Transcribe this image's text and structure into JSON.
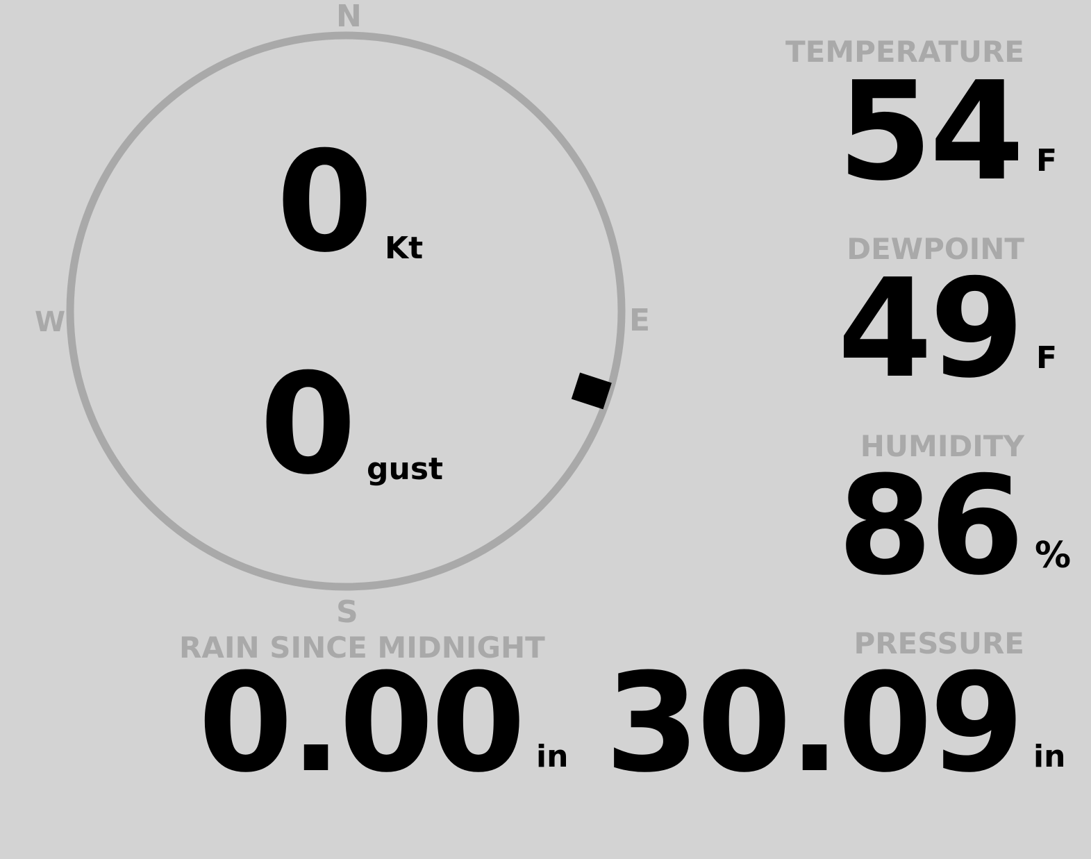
{
  "compass": {
    "north": "N",
    "east": "E",
    "south": "S",
    "west": "W",
    "wind_direction_deg": 108,
    "ring_color": "#a9a9a9"
  },
  "wind": {
    "speed": "0",
    "speed_unit": "Kt",
    "gust": "0",
    "gust_unit": "gust"
  },
  "temperature": {
    "label": "TEMPERATURE",
    "value": "54",
    "unit": "F"
  },
  "dewpoint": {
    "label": "DEWPOINT",
    "value": "49",
    "unit": "F"
  },
  "humidity": {
    "label": "HUMIDITY",
    "value": "86",
    "unit": "%"
  },
  "rain": {
    "label": "RAIN SINCE MIDNIGHT",
    "value": "0.00",
    "unit": "in"
  },
  "pressure": {
    "label": "PRESSURE",
    "value": "30.09",
    "unit": "in"
  }
}
